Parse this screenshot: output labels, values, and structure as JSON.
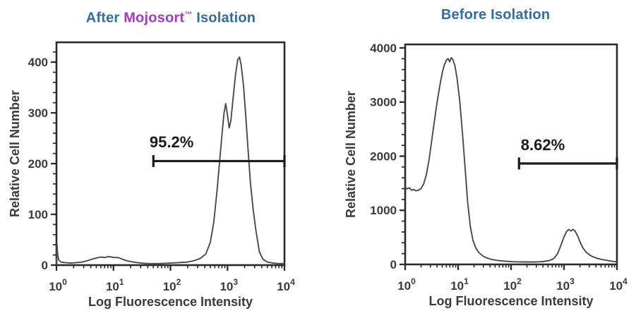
{
  "titles": {
    "after": {
      "parts": [
        {
          "text": "After ",
          "color": "#2d6da8"
        },
        {
          "text": "Mojosort",
          "color": "#a33bc9"
        },
        {
          "text": "™",
          "color": "#a33bc9",
          "sup": true
        },
        {
          "text": " Isolation",
          "color": "#2d6da8"
        }
      ]
    },
    "before": {
      "parts": [
        {
          "text": "Before Isolation",
          "color": "#2d6da8"
        }
      ]
    }
  },
  "colors": {
    "title_blue": "#2d6da8",
    "title_purple": "#a33bc9",
    "axis": "#2a2a2a",
    "text": "#3a3a3a",
    "curve": "#4a4a4a",
    "gate": "#1b1b1b",
    "background": "#ffffff"
  },
  "chart_data": [
    {
      "type": "line",
      "title": "After Mojosort™ Isolation",
      "xlabel": "Log Fluorescence Intensity",
      "ylabel": "Relative Cell Number",
      "x_scale": "log10",
      "xlim_log10": [
        0,
        4
      ],
      "x_major_tick_exponents": [
        0,
        1,
        2,
        3,
        4
      ],
      "ylim": [
        0,
        439
      ],
      "y_major_ticks": [
        0,
        100,
        200,
        300,
        400
      ],
      "y_minor_step": 20,
      "grid": false,
      "legend": false,
      "frame": "full-box",
      "axis_color": "#2a2a2a",
      "text_color": "#3a3a3a",
      "curve_color": "#4a4a4a",
      "series": [
        {
          "name": "relative cell number histogram",
          "points": [
            [
              0.0,
              2
            ],
            [
              0.01,
              40
            ],
            [
              0.02,
              22
            ],
            [
              0.04,
              10
            ],
            [
              0.08,
              6
            ],
            [
              0.15,
              5
            ],
            [
              0.25,
              4
            ],
            [
              0.35,
              5
            ],
            [
              0.45,
              6
            ],
            [
              0.55,
              9
            ],
            [
              0.63,
              12
            ],
            [
              0.7,
              14
            ],
            [
              0.78,
              16
            ],
            [
              0.85,
              15
            ],
            [
              0.92,
              17
            ],
            [
              1.0,
              15
            ],
            [
              1.08,
              15
            ],
            [
              1.15,
              12
            ],
            [
              1.25,
              8
            ],
            [
              1.35,
              6
            ],
            [
              1.48,
              4
            ],
            [
              1.62,
              3
            ],
            [
              1.8,
              3
            ],
            [
              2.0,
              4
            ],
            [
              2.15,
              5
            ],
            [
              2.3,
              6
            ],
            [
              2.42,
              9
            ],
            [
              2.52,
              13
            ],
            [
              2.62,
              22
            ],
            [
              2.7,
              45
            ],
            [
              2.76,
              85
            ],
            [
              2.82,
              150
            ],
            [
              2.87,
              215
            ],
            [
              2.91,
              265
            ],
            [
              2.94,
              300
            ],
            [
              2.97,
              318
            ],
            [
              3.0,
              295
            ],
            [
              3.03,
              270
            ],
            [
              3.06,
              285
            ],
            [
              3.1,
              330
            ],
            [
              3.14,
              375
            ],
            [
              3.18,
              405
            ],
            [
              3.21,
              410
            ],
            [
              3.24,
              395
            ],
            [
              3.28,
              355
            ],
            [
              3.32,
              295
            ],
            [
              3.36,
              230
            ],
            [
              3.4,
              165
            ],
            [
              3.45,
              110
            ],
            [
              3.5,
              68
            ],
            [
              3.56,
              26
            ],
            [
              3.62,
              12
            ],
            [
              3.7,
              6
            ],
            [
              3.8,
              4
            ],
            [
              3.9,
              3
            ],
            [
              4.0,
              3
            ]
          ]
        }
      ],
      "gate": {
        "label": "95.2%",
        "x1_log10": 1.7,
        "x2_log10": 4.0,
        "y": 205,
        "label_x_log10": 2.02,
        "label_y": 232,
        "color": "#1b1b1b"
      }
    },
    {
      "type": "line",
      "title": "Before Isolation",
      "xlabel": "Log Fluorescence Intensity",
      "ylabel": "Relative Cell Number",
      "x_scale": "log10",
      "xlim_log10": [
        0,
        4
      ],
      "x_major_tick_exponents": [
        0,
        1,
        2,
        3,
        4
      ],
      "ylim": [
        0,
        4065
      ],
      "y_major_ticks": [
        0,
        1000,
        2000,
        3000,
        4000
      ],
      "y_minor_step": 200,
      "grid": false,
      "legend": false,
      "frame": "full-box",
      "axis_color": "#2a2a2a",
      "text_color": "#3a3a3a",
      "curve_color": "#4a4a4a",
      "series": [
        {
          "name": "relative cell number histogram",
          "points": [
            [
              0.0,
              1430
            ],
            [
              0.04,
              1395
            ],
            [
              0.08,
              1415
            ],
            [
              0.12,
              1370
            ],
            [
              0.16,
              1385
            ],
            [
              0.2,
              1360
            ],
            [
              0.25,
              1370
            ],
            [
              0.3,
              1405
            ],
            [
              0.35,
              1490
            ],
            [
              0.4,
              1660
            ],
            [
              0.45,
              1930
            ],
            [
              0.5,
              2280
            ],
            [
              0.55,
              2640
            ],
            [
              0.6,
              2980
            ],
            [
              0.65,
              3280
            ],
            [
              0.7,
              3540
            ],
            [
              0.74,
              3690
            ],
            [
              0.78,
              3775
            ],
            [
              0.81,
              3805
            ],
            [
              0.84,
              3745
            ],
            [
              0.87,
              3820
            ],
            [
              0.9,
              3785
            ],
            [
              0.94,
              3670
            ],
            [
              0.98,
              3440
            ],
            [
              1.03,
              3020
            ],
            [
              1.08,
              2450
            ],
            [
              1.13,
              1800
            ],
            [
              1.18,
              1150
            ],
            [
              1.23,
              700
            ],
            [
              1.28,
              450
            ],
            [
              1.33,
              310
            ],
            [
              1.39,
              220
            ],
            [
              1.46,
              160
            ],
            [
              1.54,
              120
            ],
            [
              1.64,
              90
            ],
            [
              1.76,
              70
            ],
            [
              1.9,
              58
            ],
            [
              2.05,
              50
            ],
            [
              2.25,
              45
            ],
            [
              2.45,
              45
            ],
            [
              2.6,
              52
            ],
            [
              2.72,
              70
            ],
            [
              2.81,
              110
            ],
            [
              2.88,
              200
            ],
            [
              2.94,
              350
            ],
            [
              3.0,
              510
            ],
            [
              3.05,
              610
            ],
            [
              3.09,
              645
            ],
            [
              3.13,
              618
            ],
            [
              3.17,
              648
            ],
            [
              3.21,
              612
            ],
            [
              3.26,
              520
            ],
            [
              3.31,
              400
            ],
            [
              3.36,
              300
            ],
            [
              3.42,
              225
            ],
            [
              3.49,
              170
            ],
            [
              3.56,
              135
            ],
            [
              3.64,
              108
            ],
            [
              3.73,
              88
            ],
            [
              3.83,
              70
            ],
            [
              3.93,
              55
            ],
            [
              4.0,
              48
            ]
          ]
        }
      ],
      "gate": {
        "label": "8.62%",
        "x1_log10": 2.15,
        "x2_log10": 4.0,
        "y": 1865,
        "label_x_log10": 2.6,
        "label_y": 2110,
        "color": "#1b1b1b"
      }
    }
  ]
}
